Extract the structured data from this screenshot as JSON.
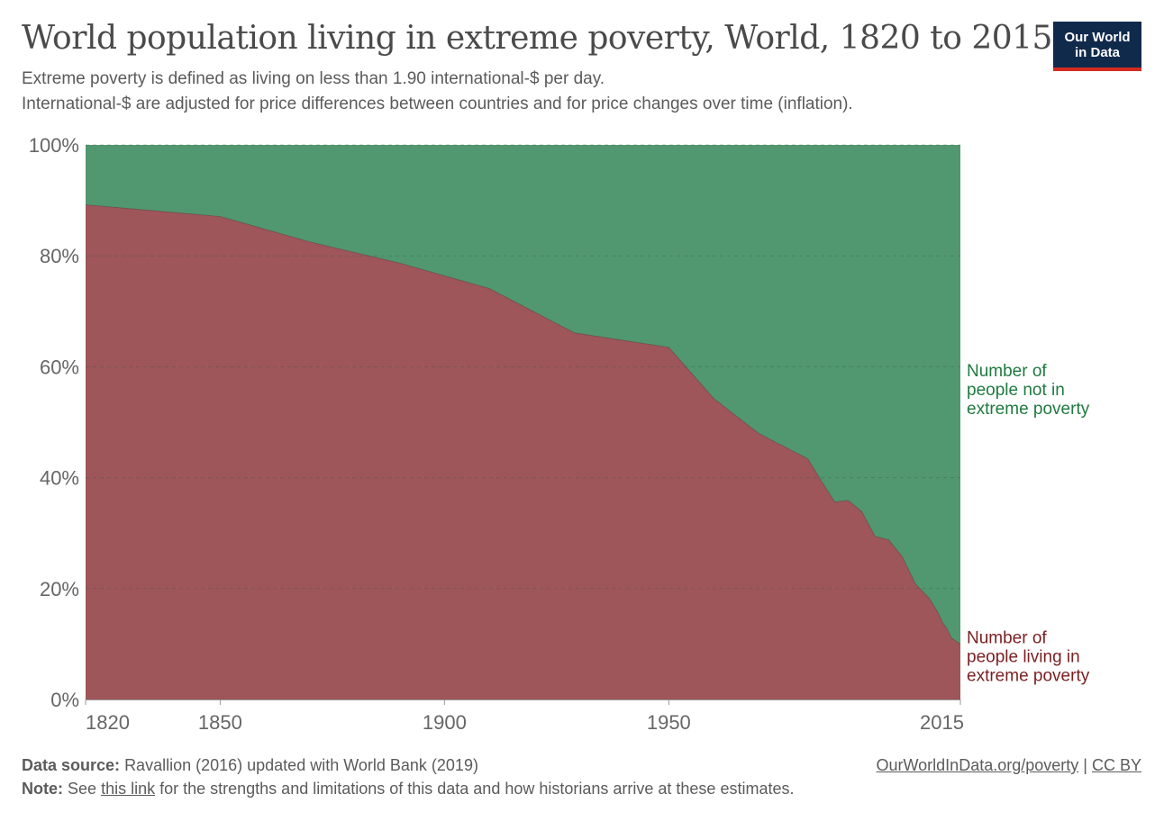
{
  "header": {
    "title": "World population living in extreme poverty, World, 1820 to 2015",
    "subtitle_line1": "Extreme poverty is defined as living on less than 1.90 international-$ per day.",
    "subtitle_line2": "International-$ are adjusted for price differences between countries and for price changes over time (inflation).",
    "logo_line1": "Our World",
    "logo_line2": "in Data"
  },
  "footer": {
    "source_label": "Data source:",
    "source_text": "Ravallion (2016) updated with World Bank (2019)",
    "note_label": "Note:",
    "note_prefix": "See",
    "note_link": "this link",
    "note_suffix": "for the strengths and limitations of this data and how historians arrive at these estimates.",
    "credit_link": "OurWorldInData.org/poverty",
    "credit_sep": "|",
    "license_link": "CC BY"
  },
  "colors": {
    "poverty": "#9e565a",
    "not_poverty": "#519870",
    "poverty_label": "#7a1f22",
    "not_poverty_label": "#1f7a3f",
    "axis_text": "#666666"
  },
  "chart_data": {
    "type": "area",
    "stacked": true,
    "normalized": true,
    "x": [
      1820,
      1850,
      1870,
      1890,
      1910,
      1929,
      1950,
      1960,
      1970,
      1981,
      1984,
      1987,
      1990,
      1993,
      1996,
      1999,
      2002,
      2005,
      2008,
      2010,
      2011,
      2012,
      2013,
      2015
    ],
    "series": [
      {
        "name": "Number of people living in extreme poverty",
        "label_lines": [
          "Number of",
          "people living in",
          "extreme poverty"
        ],
        "values": [
          89.2,
          87.1,
          82.5,
          78.7,
          74.1,
          66.1,
          63.5,
          54.3,
          48.0,
          43.4,
          39.4,
          35.6,
          35.9,
          33.9,
          29.4,
          28.8,
          25.8,
          20.8,
          18.3,
          15.7,
          13.9,
          12.8,
          11.1,
          10.0
        ]
      },
      {
        "name": "Number of people not in extreme poverty",
        "label_lines": [
          "Number of",
          "people not in",
          "extreme poverty"
        ],
        "values": [
          10.8,
          12.9,
          17.5,
          21.3,
          25.9,
          33.9,
          36.5,
          45.7,
          52.0,
          56.6,
          60.6,
          64.4,
          64.1,
          66.1,
          70.6,
          71.2,
          74.2,
          79.2,
          81.7,
          84.3,
          86.1,
          87.2,
          88.9,
          90.0
        ]
      }
    ],
    "xlim": [
      1820,
      2015
    ],
    "ylim": [
      0,
      100
    ],
    "y_ticks": [
      0,
      20,
      40,
      60,
      80,
      100
    ],
    "y_tick_labels": [
      "0%",
      "20%",
      "40%",
      "60%",
      "80%",
      "100%"
    ],
    "x_ticks": [
      1820,
      1850,
      1900,
      1950,
      2015
    ],
    "x_tick_labels": [
      "1820",
      "1850",
      "1900",
      "1950",
      "2015"
    ],
    "grid": "horizontal-dashed",
    "legend": "right-inline"
  }
}
